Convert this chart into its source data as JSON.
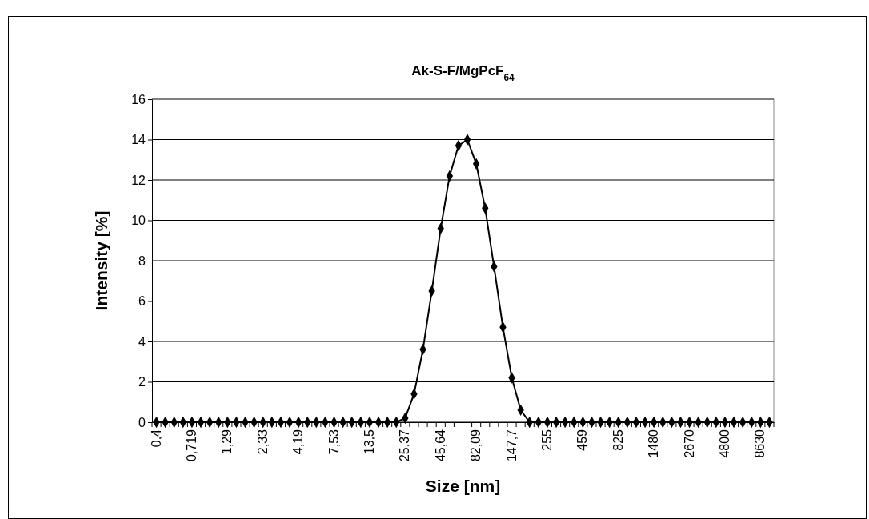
{
  "chart_data": {
    "type": "line",
    "title": "Ak-S-F/MgPcF$_{64}$",
    "xlabel": "Size [nm]",
    "ylabel": "Intensity [%]",
    "categories": [
      "0,4",
      null,
      null,
      null,
      "0,719",
      null,
      null,
      null,
      "1,29",
      null,
      null,
      null,
      "2,33",
      null,
      null,
      null,
      "4,19",
      null,
      null,
      null,
      "7,53",
      null,
      null,
      null,
      "13,5",
      null,
      null,
      null,
      "25,37",
      null,
      null,
      null,
      "45,64",
      null,
      null,
      null,
      "82,09",
      null,
      null,
      null,
      "147,7",
      null,
      null,
      null,
      "255",
      null,
      null,
      null,
      "459",
      null,
      null,
      null,
      "825",
      null,
      null,
      null,
      "1480",
      null,
      null,
      null,
      "2670",
      null,
      null,
      null,
      "4800",
      null,
      null,
      null,
      "8630",
      null
    ],
    "series": [
      {
        "color": "#000000",
        "values": [
          0,
          0,
          0,
          0,
          0,
          0,
          0,
          0,
          0,
          0,
          0,
          0,
          0,
          0,
          0,
          0,
          0,
          0,
          0,
          0,
          0,
          0,
          0,
          0,
          0,
          0,
          0,
          0,
          0.2,
          1.4,
          3.6,
          6.5,
          9.6,
          12.2,
          13.7,
          14.0,
          12.8,
          10.6,
          7.7,
          4.7,
          2.2,
          0.6,
          0,
          0,
          0,
          0,
          0,
          0,
          0,
          0,
          0,
          0,
          0,
          0,
          0,
          0,
          0,
          0,
          0,
          0,
          0,
          0,
          0,
          0,
          0,
          0,
          0,
          0,
          0,
          0
        ]
      }
    ],
    "ylim": [
      0,
      16
    ],
    "yticks": [
      0,
      2,
      4,
      6,
      8,
      10,
      12,
      14,
      16
    ],
    "grid": "y",
    "marker": "diamond",
    "line_style": "solid"
  }
}
